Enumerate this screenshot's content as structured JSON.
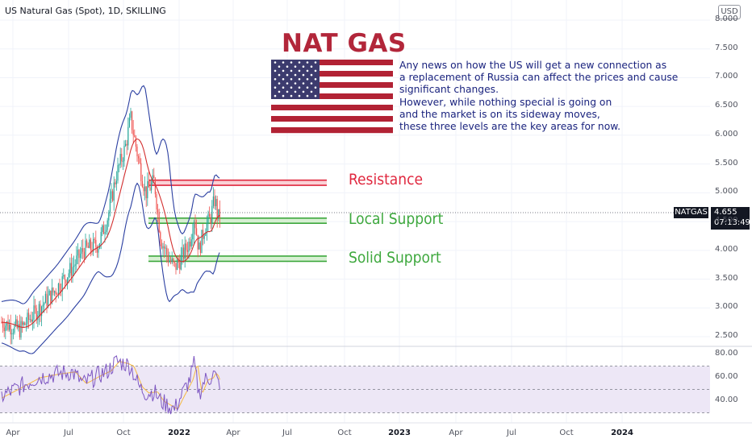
{
  "header": {
    "title": "US Natural Gas (Spot), 1D, SKILLING",
    "currency": "USD"
  },
  "annotation": {
    "title": "NAT GAS",
    "lines": [
      "Any news on how the US will get a new connection as",
      "a replacement of Russia can affect the prices and cause",
      "significant changes.",
      "However, while nothing special is going on",
      "and the market is on its sideway moves,",
      "these three levels are the key areas for now."
    ]
  },
  "price_tag": {
    "symbol": "NATGAS",
    "price": "4.655",
    "countdown": "07:13:49"
  },
  "colors": {
    "resistance": "#e0283f",
    "support": "#3ea83e",
    "bollinger": "#2b3fa1",
    "ma": "#d32f2f",
    "rsi": "#7e57c2",
    "rsi_band": "#ede7f6",
    "note_text": "#1a237e",
    "title": "#b2263a"
  },
  "chart_data": [
    {
      "type": "line",
      "series_kind": "candlestick price with Bollinger Bands",
      "x_ticks": [
        "Apr",
        "Jul",
        "Oct",
        "2022",
        "Apr",
        "Jul",
        "Oct",
        "2023",
        "Apr",
        "Jul",
        "Oct",
        "2024"
      ],
      "y_ticks": [
        "8.000",
        "7.500",
        "7.000",
        "6.500",
        "6.000",
        "5.500",
        "5.000",
        "4.500",
        "4.000",
        "3.500",
        "3.000",
        "2.500"
      ],
      "ylim": [
        2.35,
        8.05
      ],
      "last_price": 4.655,
      "series": [
        {
          "name": "",
          "points": [
            [
              "2021-03-01",
              2.75
            ],
            [
              "2021-04-01",
              2.62
            ],
            [
              "2021-05-01",
              2.95
            ],
            [
              "2021-06-01",
              3.3
            ],
            [
              "2021-07-01",
              3.7
            ],
            [
              "2021-07-20",
              4.0
            ],
            [
              "2021-08-15",
              4.1
            ],
            [
              "2021-09-01",
              4.6
            ],
            [
              "2021-09-15",
              5.3
            ],
            [
              "2021-10-01",
              5.8
            ],
            [
              "2021-10-10",
              6.3
            ],
            [
              "2021-10-25",
              5.5
            ],
            [
              "2021-11-05",
              5.0
            ],
            [
              "2021-11-20",
              5.2
            ],
            [
              "2021-12-01",
              4.2
            ],
            [
              "2021-12-15",
              3.85
            ],
            [
              "2021-12-25",
              3.7
            ],
            [
              "2022-01-05",
              3.85
            ],
            [
              "2022-01-20",
              4.15
            ],
            [
              "2022-01-28",
              4.6
            ],
            [
              "2022-02-05",
              4.0
            ],
            [
              "2022-02-15",
              4.4
            ],
            [
              "2022-02-25",
              4.55
            ],
            [
              "2022-03-01",
              4.75
            ],
            [
              "2022-03-05",
              4.9
            ],
            [
              "2022-03-10",
              4.55
            ],
            [
              "2022-03-14",
              4.65
            ]
          ]
        }
      ],
      "levels": [
        {
          "name": "Resistance",
          "low": 5.13,
          "high": 5.22
        },
        {
          "name": "Local Support",
          "low": 4.47,
          "high": 4.56
        },
        {
          "name": "Solid Support",
          "low": 3.81,
          "high": 3.9
        }
      ]
    },
    {
      "type": "line",
      "series_kind": "RSI",
      "y_ticks": [
        "80.00",
        "60.00",
        "40.00"
      ],
      "ylim": [
        27,
        83
      ],
      "band": [
        30,
        70
      ],
      "series": [
        {
          "name": "",
          "points": [
            [
              "2021-03-01",
              44
            ],
            [
              "2021-04-01",
              52
            ],
            [
              "2021-05-01",
              60
            ],
            [
              "2021-06-01",
              63
            ],
            [
              "2021-07-01",
              65
            ],
            [
              "2021-07-20",
              55
            ],
            [
              "2021-08-15",
              62
            ],
            [
              "2021-09-01",
              66
            ],
            [
              "2021-09-15",
              74
            ],
            [
              "2021-10-01",
              72
            ],
            [
              "2021-10-10",
              70
            ],
            [
              "2021-10-25",
              52
            ],
            [
              "2021-11-05",
              47
            ],
            [
              "2021-11-20",
              48
            ],
            [
              "2021-12-01",
              40
            ],
            [
              "2021-12-15",
              36
            ],
            [
              "2021-12-25",
              33
            ],
            [
              "2022-01-05",
              44
            ],
            [
              "2022-01-20",
              58
            ],
            [
              "2022-01-28",
              72
            ],
            [
              "2022-02-05",
              46
            ],
            [
              "2022-02-15",
              58
            ],
            [
              "2022-02-25",
              60
            ],
            [
              "2022-03-01",
              64
            ],
            [
              "2022-03-05",
              62
            ],
            [
              "2022-03-10",
              55
            ],
            [
              "2022-03-14",
              56
            ]
          ]
        }
      ]
    }
  ]
}
